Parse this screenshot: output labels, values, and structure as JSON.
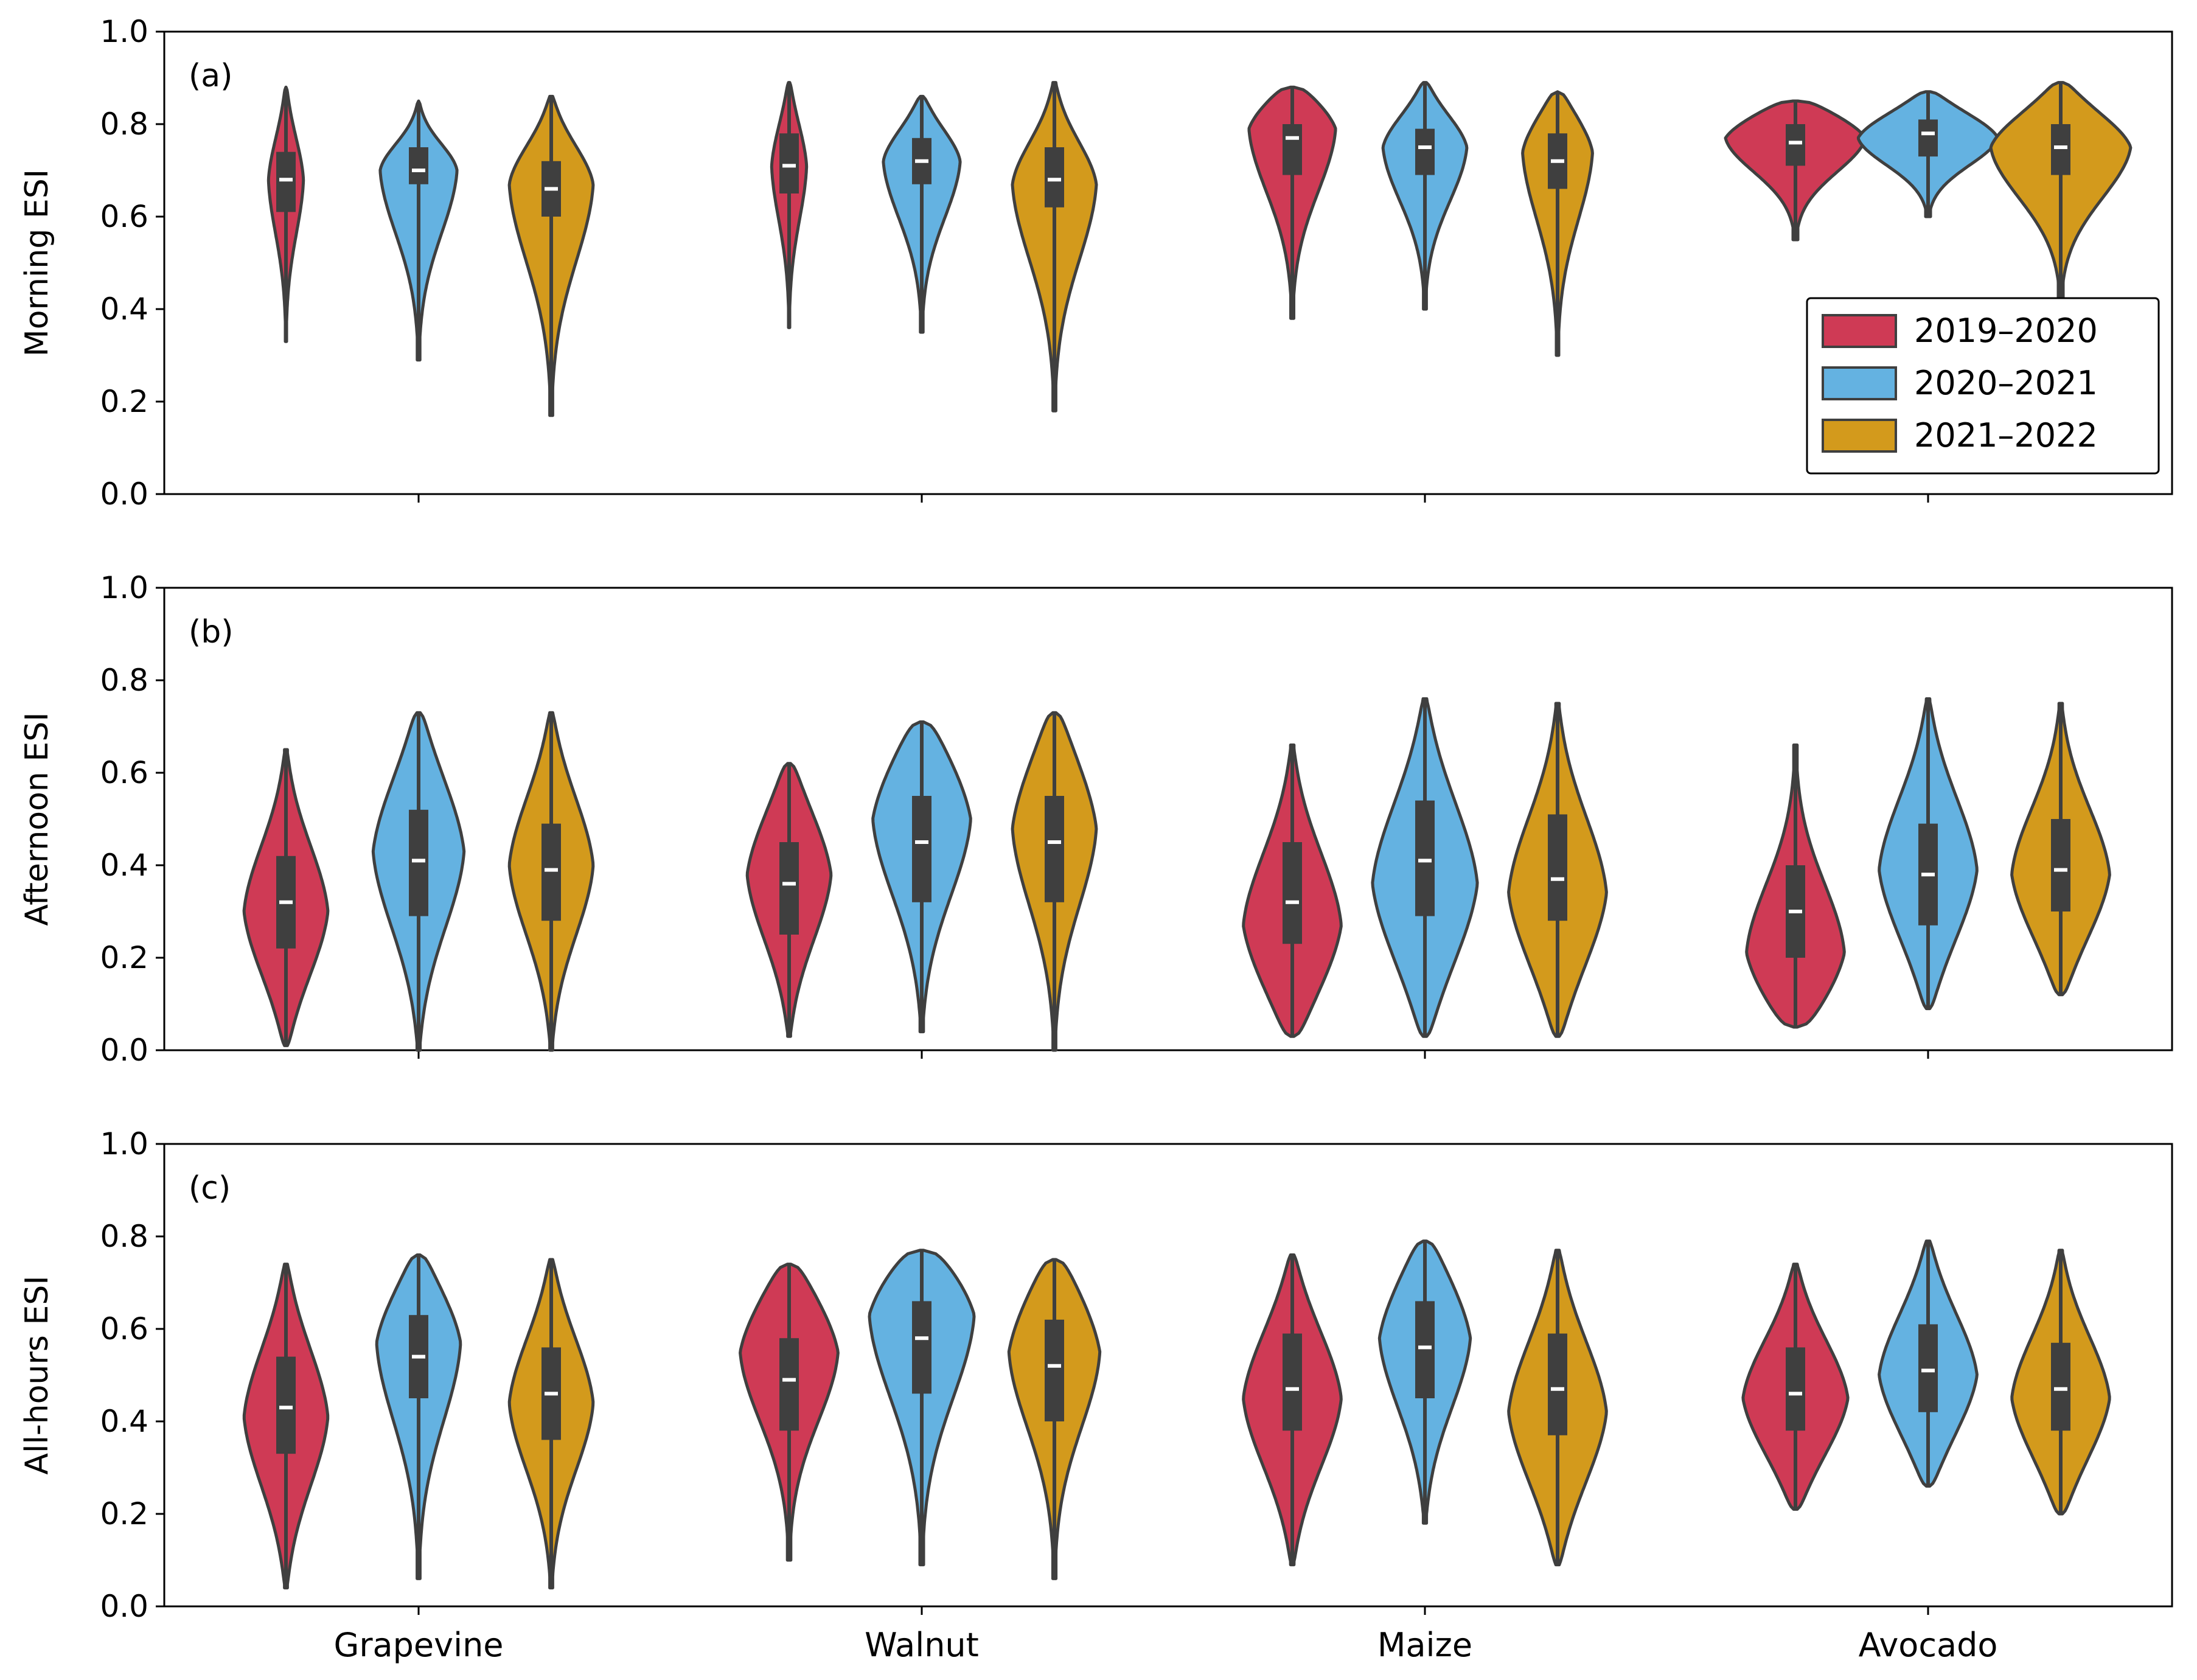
{
  "figure": {
    "type": "violin",
    "ylim": [
      0,
      1.0
    ],
    "yticks": [
      "0.0",
      "0.2",
      "0.4",
      "0.6",
      "0.8",
      "1.0"
    ],
    "categories": [
      "Grapevine",
      "Walnut",
      "Maize",
      "Avocado"
    ],
    "series_names": [
      "2019–2020",
      "2020–2021",
      "2021–2022"
    ],
    "colors": {
      "2019–2020": "#cf3a55",
      "2020–2021": "#64b2e1",
      "2021–2022": "#d39a1c",
      "edge": "#3f3f3f",
      "box": "#3f3f3f",
      "median": "#ffffff"
    },
    "legend": {
      "placement": "lower-right",
      "panel": "(a)"
    }
  },
  "chart_data": [
    {
      "type": "violin",
      "panel_label": "(a)",
      "ylabel": "Morning ESI",
      "xlabel": "",
      "ylim": [
        0,
        1.0
      ],
      "categories": [
        "Grapevine",
        "Walnut",
        "Maize",
        "Avocado"
      ],
      "series": [
        {
          "name": "2019–2020",
          "stats": [
            {
              "min": 0.33,
              "q1": 0.61,
              "median": 0.68,
              "q3": 0.74,
              "max": 0.88,
              "mode": 0.68,
              "width": 0.25
            },
            {
              "min": 0.36,
              "q1": 0.65,
              "median": 0.71,
              "q3": 0.78,
              "max": 0.89,
              "mode": 0.71,
              "width": 0.25
            },
            {
              "min": 0.38,
              "q1": 0.69,
              "median": 0.77,
              "q3": 0.8,
              "max": 0.88,
              "mode": 0.79,
              "width": 0.62
            },
            {
              "min": 0.55,
              "q1": 0.71,
              "median": 0.76,
              "q3": 0.8,
              "max": 0.85,
              "mode": 0.77,
              "width": 1.0
            }
          ]
        },
        {
          "name": "2020–2021",
          "stats": [
            {
              "min": 0.29,
              "q1": 0.67,
              "median": 0.7,
              "q3": 0.75,
              "max": 0.85,
              "mode": 0.7,
              "width": 0.55
            },
            {
              "min": 0.35,
              "q1": 0.67,
              "median": 0.72,
              "q3": 0.77,
              "max": 0.86,
              "mode": 0.72,
              "width": 0.55
            },
            {
              "min": 0.4,
              "q1": 0.69,
              "median": 0.75,
              "q3": 0.79,
              "max": 0.89,
              "mode": 0.75,
              "width": 0.6
            },
            {
              "min": 0.6,
              "q1": 0.73,
              "median": 0.78,
              "q3": 0.81,
              "max": 0.87,
              "mode": 0.77,
              "width": 1.0
            }
          ]
        },
        {
          "name": "2021–2022",
          "stats": [
            {
              "min": 0.17,
              "q1": 0.6,
              "median": 0.66,
              "q3": 0.72,
              "max": 0.86,
              "mode": 0.67,
              "width": 0.6
            },
            {
              "min": 0.18,
              "q1": 0.62,
              "median": 0.68,
              "q3": 0.75,
              "max": 0.89,
              "mode": 0.67,
              "width": 0.6
            },
            {
              "min": 0.3,
              "q1": 0.66,
              "median": 0.72,
              "q3": 0.78,
              "max": 0.87,
              "mode": 0.74,
              "width": 0.5
            },
            {
              "min": 0.42,
              "q1": 0.69,
              "median": 0.75,
              "q3": 0.8,
              "max": 0.89,
              "mode": 0.75,
              "width": 1.0
            }
          ]
        }
      ]
    },
    {
      "type": "violin",
      "panel_label": "(b)",
      "ylabel": "Afternoon ESI",
      "xlabel": "",
      "ylim": [
        0,
        1.0
      ],
      "categories": [
        "Grapevine",
        "Walnut",
        "Maize",
        "Avocado"
      ],
      "series": [
        {
          "name": "2019–2020",
          "stats": [
            {
              "min": 0.01,
              "q1": 0.22,
              "median": 0.32,
              "q3": 0.42,
              "max": 0.65,
              "mode": 0.3,
              "width": 0.6
            },
            {
              "min": 0.03,
              "q1": 0.25,
              "median": 0.36,
              "q3": 0.45,
              "max": 0.62,
              "mode": 0.38,
              "width": 0.6
            },
            {
              "min": 0.03,
              "q1": 0.23,
              "median": 0.32,
              "q3": 0.45,
              "max": 0.66,
              "mode": 0.27,
              "width": 0.7
            },
            {
              "min": 0.05,
              "q1": 0.2,
              "median": 0.3,
              "q3": 0.4,
              "max": 0.66,
              "mode": 0.21,
              "width": 0.7
            }
          ]
        },
        {
          "name": "2020–2021",
          "stats": [
            {
              "min": 0.0,
              "q1": 0.29,
              "median": 0.41,
              "q3": 0.52,
              "max": 0.73,
              "mode": 0.43,
              "width": 0.65
            },
            {
              "min": 0.04,
              "q1": 0.32,
              "median": 0.45,
              "q3": 0.55,
              "max": 0.71,
              "mode": 0.5,
              "width": 0.7
            },
            {
              "min": 0.03,
              "q1": 0.29,
              "median": 0.41,
              "q3": 0.54,
              "max": 0.76,
              "mode": 0.36,
              "width": 0.75
            },
            {
              "min": 0.09,
              "q1": 0.27,
              "median": 0.38,
              "q3": 0.49,
              "max": 0.76,
              "mode": 0.39,
              "width": 0.7
            }
          ]
        },
        {
          "name": "2021–2022",
          "stats": [
            {
              "min": 0.0,
              "q1": 0.28,
              "median": 0.39,
              "q3": 0.49,
              "max": 0.73,
              "mode": 0.4,
              "width": 0.6
            },
            {
              "min": 0.0,
              "q1": 0.32,
              "median": 0.45,
              "q3": 0.55,
              "max": 0.73,
              "mode": 0.48,
              "width": 0.6
            },
            {
              "min": 0.03,
              "q1": 0.28,
              "median": 0.37,
              "q3": 0.51,
              "max": 0.75,
              "mode": 0.34,
              "width": 0.7
            },
            {
              "min": 0.12,
              "q1": 0.3,
              "median": 0.39,
              "q3": 0.5,
              "max": 0.75,
              "mode": 0.38,
              "width": 0.7
            }
          ]
        }
      ]
    },
    {
      "type": "violin",
      "panel_label": "(c)",
      "ylabel": "All-hours ESI",
      "xlabel": "",
      "ylim": [
        0,
        1.0
      ],
      "categories": [
        "Grapevine",
        "Walnut",
        "Maize",
        "Avocado"
      ],
      "series": [
        {
          "name": "2019–2020",
          "stats": [
            {
              "min": 0.04,
              "q1": 0.33,
              "median": 0.43,
              "q3": 0.54,
              "max": 0.74,
              "mode": 0.41,
              "width": 0.6
            },
            {
              "min": 0.1,
              "q1": 0.38,
              "median": 0.49,
              "q3": 0.58,
              "max": 0.74,
              "mode": 0.55,
              "width": 0.7
            },
            {
              "min": 0.09,
              "q1": 0.38,
              "median": 0.47,
              "q3": 0.59,
              "max": 0.76,
              "mode": 0.45,
              "width": 0.7
            },
            {
              "min": 0.21,
              "q1": 0.38,
              "median": 0.46,
              "q3": 0.56,
              "max": 0.74,
              "mode": 0.45,
              "width": 0.75
            }
          ]
        },
        {
          "name": "2020–2021",
          "stats": [
            {
              "min": 0.06,
              "q1": 0.45,
              "median": 0.54,
              "q3": 0.63,
              "max": 0.76,
              "mode": 0.57,
              "width": 0.6
            },
            {
              "min": 0.09,
              "q1": 0.46,
              "median": 0.58,
              "q3": 0.66,
              "max": 0.77,
              "mode": 0.63,
              "width": 0.75
            },
            {
              "min": 0.18,
              "q1": 0.45,
              "median": 0.56,
              "q3": 0.66,
              "max": 0.79,
              "mode": 0.58,
              "width": 0.65
            },
            {
              "min": 0.26,
              "q1": 0.42,
              "median": 0.51,
              "q3": 0.61,
              "max": 0.79,
              "mode": 0.5,
              "width": 0.7
            }
          ]
        },
        {
          "name": "2021–2022",
          "stats": [
            {
              "min": 0.04,
              "q1": 0.36,
              "median": 0.46,
              "q3": 0.56,
              "max": 0.75,
              "mode": 0.44,
              "width": 0.6
            },
            {
              "min": 0.06,
              "q1": 0.4,
              "median": 0.52,
              "q3": 0.62,
              "max": 0.75,
              "mode": 0.55,
              "width": 0.65
            },
            {
              "min": 0.09,
              "q1": 0.37,
              "median": 0.47,
              "q3": 0.59,
              "max": 0.77,
              "mode": 0.42,
              "width": 0.7
            },
            {
              "min": 0.2,
              "q1": 0.38,
              "median": 0.47,
              "q3": 0.57,
              "max": 0.77,
              "mode": 0.45,
              "width": 0.7
            }
          ]
        }
      ]
    }
  ]
}
